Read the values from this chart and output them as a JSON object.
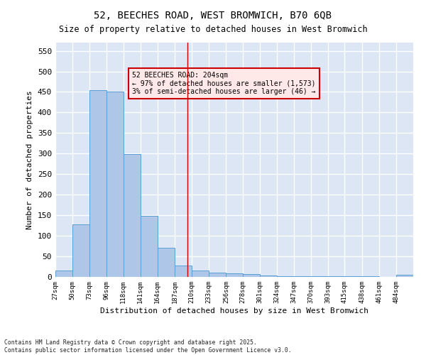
{
  "title_line1": "52, BEECHES ROAD, WEST BROMWICH, B70 6QB",
  "title_line2": "Size of property relative to detached houses in West Bromwich",
  "xlabel": "Distribution of detached houses by size in West Bromwich",
  "ylabel": "Number of detached properties",
  "bar_edges": [
    27,
    50,
    73,
    96,
    118,
    141,
    164,
    187,
    210,
    233,
    256,
    278,
    301,
    324,
    347,
    370,
    393,
    415,
    438,
    461,
    484
  ],
  "bar_heights": [
    15,
    128,
    455,
    450,
    299,
    149,
    70,
    28,
    15,
    10,
    8,
    7,
    3,
    2,
    2,
    1,
    1,
    1,
    1,
    0,
    5
  ],
  "bar_color": "#aec6e8",
  "bar_edge_color": "#5a9fd4",
  "vline_x": 204,
  "vline_color": "#cc0000",
  "annotation_text": "52 BEECHES ROAD: 204sqm\n← 97% of detached houses are smaller (1,573)\n3% of semi-detached houses are larger (46) →",
  "annotation_box_facecolor": "#ffe8e8",
  "annotation_box_edgecolor": "#cc0000",
  "yticks": [
    0,
    50,
    100,
    150,
    200,
    250,
    300,
    350,
    400,
    450,
    500,
    550
  ],
  "ylim": [
    0,
    570
  ],
  "background_color": "#dce6f5",
  "grid_color": "#ffffff",
  "figure_facecolor": "#ffffff",
  "footer_line1": "Contains HM Land Registry data © Crown copyright and database right 2025.",
  "footer_line2": "Contains public sector information licensed under the Open Government Licence v3.0.",
  "tick_labels": [
    "27sqm",
    "50sqm",
    "73sqm",
    "96sqm",
    "118sqm",
    "141sqm",
    "164sqm",
    "187sqm",
    "210sqm",
    "233sqm",
    "256sqm",
    "278sqm",
    "301sqm",
    "324sqm",
    "347sqm",
    "370sqm",
    "393sqm",
    "415sqm",
    "438sqm",
    "461sqm",
    "484sqm"
  ]
}
